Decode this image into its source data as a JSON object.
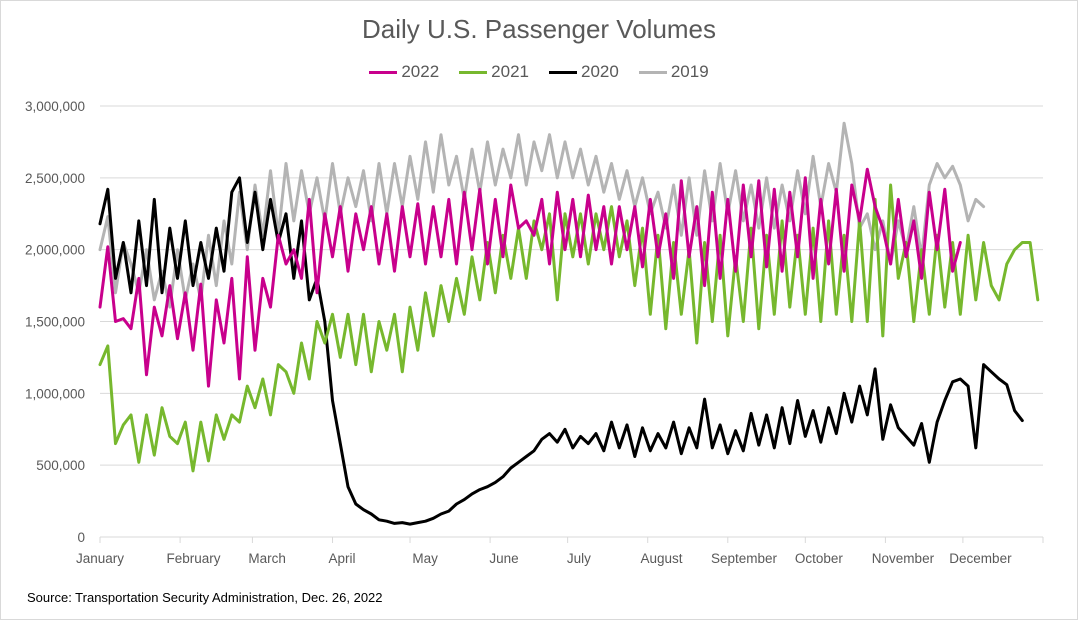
{
  "chart_data": {
    "type": "line",
    "title": "Daily U.S. Passenger Volumes",
    "xlabel": "",
    "ylabel": "",
    "ylim": [
      0,
      3000000
    ],
    "yticks": [
      0,
      500000,
      1000000,
      1500000,
      2000000,
      2500000,
      3000000
    ],
    "ytick_labels": [
      "0",
      "500,000",
      "1,000,000",
      "1,500,000",
      "2,000,000",
      "2,500,000",
      "3,000,000"
    ],
    "xtick_labels": [
      "January",
      "February",
      "March",
      "April",
      "May",
      "June",
      "July",
      "August",
      "September",
      "October",
      "November",
      "December"
    ],
    "x_unit": "day of year (sampled every 3 days)",
    "grid": true,
    "legend_position": "top",
    "source": "Source: Transportation Security Administration, Dec. 26, 2022",
    "series": [
      {
        "name": "2022",
        "color": "#c8008c",
        "step_days": 3,
        "values": [
          1600000,
          2020000,
          1500000,
          1520000,
          1450000,
          1800000,
          1130000,
          1600000,
          1400000,
          1750000,
          1380000,
          1700000,
          1300000,
          1760000,
          1050000,
          1650000,
          1350000,
          1800000,
          1100000,
          1950000,
          1300000,
          1800000,
          1600000,
          2100000,
          1900000,
          2000000,
          1800000,
          2350000,
          1700000,
          2250000,
          1950000,
          2300000,
          1850000,
          2250000,
          2000000,
          2300000,
          1900000,
          2250000,
          1850000,
          2300000,
          1950000,
          2320000,
          1900000,
          2300000,
          1950000,
          2350000,
          1900000,
          2400000,
          2000000,
          2420000,
          1900000,
          2350000,
          1950000,
          2450000,
          2150000,
          2200000,
          2100000,
          2350000,
          1900000,
          2400000,
          2000000,
          2350000,
          1950000,
          2380000,
          2000000,
          2300000,
          1900000,
          2300000,
          2000000,
          2300000,
          1880000,
          2350000,
          1950000,
          2250000,
          1800000,
          2480000,
          1950000,
          2300000,
          1750000,
          2400000,
          1800000,
          2350000,
          1850000,
          2450000,
          1950000,
          2480000,
          1880000,
          2420000,
          1850000,
          2400000,
          1950000,
          2500000,
          1800000,
          2350000,
          1900000,
          2420000,
          1850000,
          2450000,
          2200000,
          2560000,
          2300000,
          2150000,
          1900000,
          2350000,
          1950000,
          2200000,
          1800000,
          2400000,
          2000000,
          2420000,
          1850000,
          2050000
        ]
      },
      {
        "name": "2021",
        "color": "#77b82e",
        "step_days": 3,
        "values": [
          1200000,
          1330000,
          650000,
          780000,
          850000,
          520000,
          850000,
          570000,
          900000,
          700000,
          650000,
          800000,
          460000,
          800000,
          530000,
          850000,
          680000,
          850000,
          800000,
          1050000,
          900000,
          1100000,
          850000,
          1200000,
          1150000,
          1000000,
          1350000,
          1100000,
          1500000,
          1350000,
          1550000,
          1250000,
          1550000,
          1200000,
          1550000,
          1150000,
          1500000,
          1300000,
          1550000,
          1150000,
          1600000,
          1300000,
          1700000,
          1400000,
          1750000,
          1500000,
          1800000,
          1550000,
          1950000,
          1650000,
          2050000,
          1700000,
          2100000,
          1800000,
          2150000,
          1800000,
          2200000,
          2000000,
          2250000,
          1650000,
          2250000,
          1950000,
          2250000,
          1900000,
          2250000,
          2000000,
          2300000,
          1950000,
          2200000,
          1750000,
          2150000,
          1550000,
          2100000,
          1450000,
          2050000,
          1550000,
          2000000,
          1350000,
          2050000,
          1500000,
          2100000,
          1400000,
          1950000,
          1500000,
          2150000,
          1450000,
          2100000,
          1550000,
          2200000,
          1600000,
          2100000,
          1550000,
          2150000,
          1500000,
          2200000,
          1550000,
          2100000,
          1500000,
          2200000,
          1500000,
          2350000,
          1400000,
          2450000,
          1800000,
          2050000,
          1500000,
          2000000,
          1550000,
          2100000,
          1600000,
          2050000,
          1550000,
          2100000,
          1650000,
          2050000,
          1750000,
          1650000,
          1900000,
          2000000,
          2050000,
          2050000,
          1650000
        ]
      },
      {
        "name": "2020",
        "color": "#000000",
        "step_days": 3,
        "values": [
          2180000,
          2420000,
          1800000,
          2050000,
          1700000,
          2200000,
          1750000,
          2350000,
          1700000,
          2150000,
          1800000,
          2200000,
          1750000,
          2050000,
          1800000,
          2150000,
          1850000,
          2400000,
          2500000,
          2050000,
          2400000,
          2000000,
          2350000,
          2050000,
          2250000,
          1800000,
          2200000,
          1650000,
          1800000,
          1500000,
          950000,
          650000,
          350000,
          230000,
          190000,
          160000,
          120000,
          110000,
          95000,
          100000,
          90000,
          100000,
          110000,
          130000,
          160000,
          180000,
          230000,
          260000,
          300000,
          330000,
          350000,
          380000,
          420000,
          480000,
          520000,
          560000,
          600000,
          680000,
          720000,
          660000,
          750000,
          620000,
          700000,
          650000,
          720000,
          600000,
          800000,
          620000,
          780000,
          560000,
          760000,
          600000,
          720000,
          620000,
          800000,
          580000,
          760000,
          620000,
          960000,
          620000,
          780000,
          580000,
          740000,
          600000,
          860000,
          640000,
          850000,
          620000,
          900000,
          650000,
          950000,
          700000,
          880000,
          660000,
          900000,
          720000,
          1000000,
          800000,
          1050000,
          850000,
          1170000,
          680000,
          920000,
          760000,
          700000,
          640000,
          790000,
          520000,
          800000,
          950000,
          1080000,
          1100000,
          1050000,
          620000,
          1200000,
          1150000,
          1100000,
          1060000,
          880000,
          810000
        ]
      },
      {
        "name": "2019",
        "color": "#b4b4b4",
        "step_days": 3,
        "values": [
          2000000,
          2230000,
          1700000,
          2050000,
          1900000,
          1700000,
          2000000,
          1650000,
          1850000,
          1600000,
          2000000,
          1650000,
          1900000,
          1650000,
          2100000,
          1750000,
          2200000,
          1900000,
          2400000,
          2000000,
          2450000,
          2100000,
          2550000,
          2100000,
          2600000,
          2200000,
          2550000,
          2250000,
          2500000,
          2200000,
          2600000,
          2250000,
          2500000,
          2300000,
          2550000,
          2200000,
          2600000,
          2250000,
          2600000,
          2300000,
          2650000,
          2350000,
          2750000,
          2400000,
          2800000,
          2450000,
          2650000,
          2350000,
          2700000,
          2400000,
          2750000,
          2450000,
          2700000,
          2500000,
          2800000,
          2450000,
          2750000,
          2550000,
          2800000,
          2500000,
          2750000,
          2500000,
          2700000,
          2450000,
          2650000,
          2400000,
          2600000,
          2350000,
          2550000,
          2300000,
          2500000,
          2250000,
          2400000,
          2150000,
          2450000,
          2100000,
          2500000,
          2100000,
          2550000,
          2200000,
          2600000,
          2250000,
          2550000,
          2200000,
          2450000,
          2150000,
          2500000,
          2150000,
          2450000,
          2200000,
          2550000,
          2250000,
          2650000,
          2300000,
          2600000,
          2400000,
          2880000,
          2600000,
          2150000,
          2250000,
          2000000,
          2200000,
          1900000,
          2200000,
          2000000,
          2300000,
          1950000,
          2450000,
          2600000,
          2500000,
          2580000,
          2450000,
          2200000,
          2350000,
          2300000
        ]
      }
    ]
  }
}
